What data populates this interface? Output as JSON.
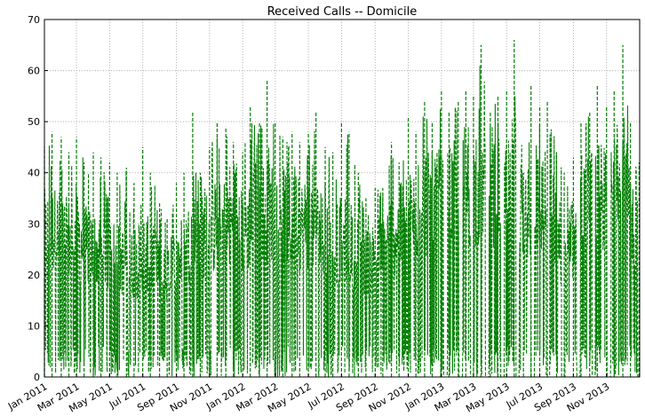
{
  "chart_data": {
    "type": "line",
    "title": "Received Calls -- Domicile",
    "xlabel": "",
    "ylabel": "",
    "x_range": [
      "2011-01-01",
      "2014-01-01"
    ],
    "ylim": [
      0,
      70
    ],
    "y_ticks": [
      0,
      10,
      20,
      30,
      40,
      50,
      60,
      70
    ],
    "x_ticks": [
      {
        "date": "2011-01-01",
        "label": "Jan 2011"
      },
      {
        "date": "2011-03-01",
        "label": "Mar 2011"
      },
      {
        "date": "2011-05-01",
        "label": "May 2011"
      },
      {
        "date": "2011-07-01",
        "label": "Jul 2011"
      },
      {
        "date": "2011-09-01",
        "label": "Sep 2011"
      },
      {
        "date": "2011-11-01",
        "label": "Nov 2011"
      },
      {
        "date": "2012-01-01",
        "label": "Jan 2012"
      },
      {
        "date": "2012-03-01",
        "label": "Mar 2012"
      },
      {
        "date": "2012-05-01",
        "label": "May 2012"
      },
      {
        "date": "2012-07-01",
        "label": "Jul 2012"
      },
      {
        "date": "2012-09-01",
        "label": "Sep 2012"
      },
      {
        "date": "2012-11-01",
        "label": "Nov 2012"
      },
      {
        "date": "2013-01-01",
        "label": "Jan 2013"
      },
      {
        "date": "2013-03-01",
        "label": "Mar 2013"
      },
      {
        "date": "2013-05-01",
        "label": "May 2013"
      },
      {
        "date": "2013-07-01",
        "label": "Jul 2013"
      },
      {
        "date": "2013-09-01",
        "label": "Sep 2013"
      },
      {
        "date": "2013-11-01",
        "label": "Nov 2013"
      }
    ],
    "grid": true,
    "series": [
      {
        "color": "#007f00",
        "line_style": "dashed",
        "x": [
          "2011-01-01",
          "2011-01-15",
          "2011-02-01",
          "2011-02-15",
          "2011-03-01",
          "2011-03-15",
          "2011-04-01",
          "2011-04-15",
          "2011-05-01",
          "2011-05-15",
          "2011-06-01",
          "2011-06-15",
          "2011-07-01",
          "2011-07-15",
          "2011-08-01",
          "2011-08-15",
          "2011-09-01",
          "2011-09-15",
          "2011-10-01",
          "2011-10-15",
          "2011-11-01",
          "2011-11-15",
          "2011-12-01",
          "2011-12-15",
          "2012-01-01",
          "2012-01-15",
          "2012-02-01",
          "2012-02-15",
          "2012-03-01",
          "2012-03-15",
          "2012-04-01",
          "2012-04-15",
          "2012-05-01",
          "2012-05-15",
          "2012-06-01",
          "2012-06-15",
          "2012-07-01",
          "2012-07-15",
          "2012-08-01",
          "2012-08-15",
          "2012-09-01",
          "2012-09-15",
          "2012-10-01",
          "2012-10-15",
          "2012-11-01",
          "2012-11-15",
          "2012-12-01",
          "2012-12-15",
          "2013-01-01",
          "2013-01-15",
          "2013-02-01",
          "2013-02-15",
          "2013-03-01",
          "2013-03-15",
          "2013-04-01",
          "2013-04-15",
          "2013-05-01",
          "2013-05-15",
          "2013-06-01",
          "2013-06-15",
          "2013-07-01",
          "2013-07-15",
          "2013-08-01",
          "2013-08-15",
          "2013-09-01",
          "2013-09-15",
          "2013-10-01",
          "2013-10-15",
          "2013-11-01",
          "2013-11-15",
          "2013-12-01",
          "2013-12-15",
          "2013-12-31"
        ],
        "y_max": [
          45,
          48,
          47,
          44,
          47,
          42,
          44,
          43,
          42,
          40,
          41,
          38,
          45,
          40,
          34,
          31,
          38,
          40,
          52,
          40,
          45,
          50,
          49,
          46,
          44,
          53,
          50,
          58,
          50,
          47,
          48,
          46,
          48,
          52,
          45,
          44,
          50,
          48,
          40,
          35,
          37,
          37,
          46,
          42,
          51,
          48,
          54,
          50,
          56,
          52,
          54,
          56,
          55,
          65,
          52,
          55,
          56,
          66,
          40,
          57,
          53,
          54,
          44,
          40,
          43,
          50,
          52,
          57,
          53,
          56,
          65,
          50,
          42
        ],
        "y_typical": [
          35,
          36,
          35,
          33,
          34,
          32,
          31,
          30,
          30,
          29,
          28,
          27,
          31,
          29,
          25,
          24,
          29,
          31,
          35,
          34,
          36,
          36,
          38,
          37,
          35,
          38,
          40,
          41,
          40,
          39,
          38,
          37,
          38,
          37,
          34,
          32,
          34,
          33,
          30,
          28,
          30,
          31,
          35,
          36,
          38,
          40,
          42,
          42,
          42,
          43,
          45,
          46,
          45,
          46,
          44,
          45,
          44,
          45,
          33,
          44,
          42,
          43,
          35,
          30,
          34,
          40,
          42,
          44,
          43,
          45,
          47,
          40,
          35
        ],
        "y_min": [
          0,
          1,
          0,
          0,
          1,
          0,
          0,
          0,
          0,
          1,
          0,
          0,
          0,
          1,
          0,
          0,
          0,
          0,
          0,
          1,
          0,
          0,
          0,
          0,
          1,
          0,
          0,
          1,
          0,
          0,
          0,
          0,
          0,
          1,
          0,
          0,
          0,
          0,
          0,
          0,
          0,
          0,
          0,
          0,
          0,
          0,
          0,
          0,
          0,
          0,
          0,
          0,
          0,
          0,
          0,
          0,
          0,
          0,
          0,
          0,
          0,
          0,
          0,
          0,
          0,
          0,
          0,
          0,
          0,
          0,
          0,
          0,
          0
        ]
      }
    ]
  }
}
